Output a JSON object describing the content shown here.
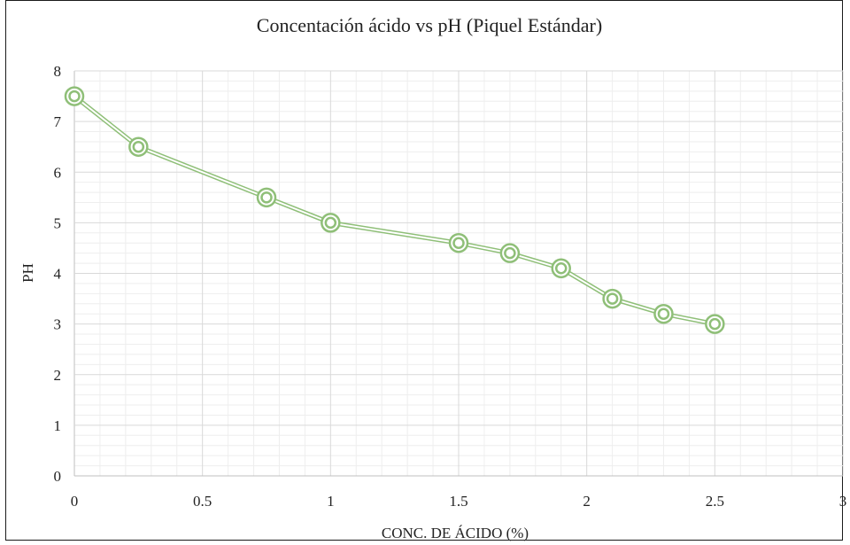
{
  "chart_data": {
    "type": "line",
    "title": "Concentación ácido vs pH (Piquel Estándar)",
    "xlabel": "CONC. DE ÁCIDO (%)",
    "ylabel": "PH",
    "xlim": [
      0,
      3
    ],
    "ylim": [
      0,
      8
    ],
    "x_ticks": [
      0,
      0.5,
      1,
      1.5,
      2,
      2.5,
      3
    ],
    "x_tick_labels": [
      "0",
      "0.5",
      "1",
      "1.5",
      "2",
      "2.5",
      "3"
    ],
    "y_ticks": [
      0,
      1,
      2,
      3,
      4,
      5,
      6,
      7,
      8
    ],
    "y_tick_labels": [
      "0",
      "1",
      "2",
      "3",
      "4",
      "5",
      "6",
      "7",
      "8"
    ],
    "grid": true,
    "minor_grid": true,
    "legend": "none",
    "series": [
      {
        "color": "#8fbf78",
        "marker": "double-circle",
        "x": [
          0,
          0.25,
          0.75,
          1,
          1.5,
          1.7,
          1.9,
          2.1,
          2.3,
          2.5
        ],
        "y": [
          7.5,
          6.5,
          5.5,
          5.0,
          4.6,
          4.4,
          4.1,
          3.5,
          3.2,
          3.0
        ]
      }
    ]
  }
}
